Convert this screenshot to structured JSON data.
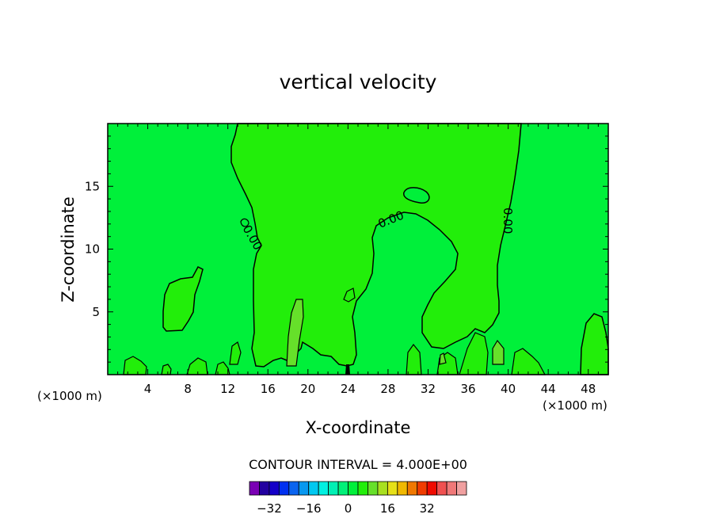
{
  "chart_data": {
    "type": "heatmap",
    "title": "vertical velocity",
    "xlabel": "X-coordinate",
    "ylabel": "Z-coordinate",
    "x_unit_left": "(×1000 m)",
    "x_unit_right": "(×1000 m)",
    "xlim": [
      0,
      50
    ],
    "ylim": [
      0,
      20
    ],
    "x_ticks": [
      4,
      8,
      12,
      16,
      20,
      24,
      28,
      32,
      36,
      40,
      44,
      48
    ],
    "y_ticks": [
      5,
      10,
      15
    ],
    "contour_label": "0.00",
    "contour_interval_text": "CONTOUR INTERVAL =  4.000E+00",
    "background_color": "#00f03a",
    "region_color": "#22ee0a",
    "positive_color": "#66e02a",
    "negative_color": "#000000",
    "colorbar": {
      "colors": [
        "#7a00b4",
        "#2200a0",
        "#1400c8",
        "#0030f0",
        "#0a64f0",
        "#0898f0",
        "#00c8f0",
        "#00f0e0",
        "#00f0b4",
        "#00f078",
        "#00f03a",
        "#22ee0a",
        "#66e02a",
        "#a8e020",
        "#e6e018",
        "#f0b800",
        "#f07800",
        "#f03c00",
        "#f00a00",
        "#f05050",
        "#f07878",
        "#f0a0a0"
      ],
      "tick_labels": [
        "−32",
        "−16",
        "0",
        "16",
        "32"
      ],
      "tick_values": [
        -32,
        -16,
        0,
        16,
        32
      ],
      "range": [
        -40,
        48
      ]
    }
  }
}
